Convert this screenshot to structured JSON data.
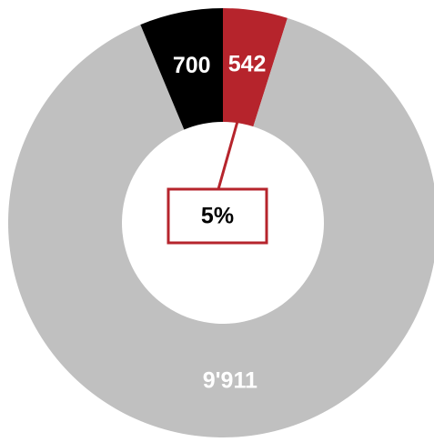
{
  "chart_data": {
    "type": "donut",
    "series": [
      {
        "name": null,
        "color": "#b6242c",
        "values": [
          542
        ]
      },
      {
        "name": null,
        "color": "#c0c0c0",
        "values": [
          9911
        ]
      },
      {
        "name": null,
        "color": "#000000",
        "values": [
          700
        ]
      }
    ],
    "values": [
      542,
      9911,
      700
    ],
    "colors": [
      "#b6242c",
      "#c0c0c0",
      "#000000"
    ],
    "value_labels": [
      "542",
      "9'911",
      "700"
    ],
    "annotation": "5%"
  }
}
